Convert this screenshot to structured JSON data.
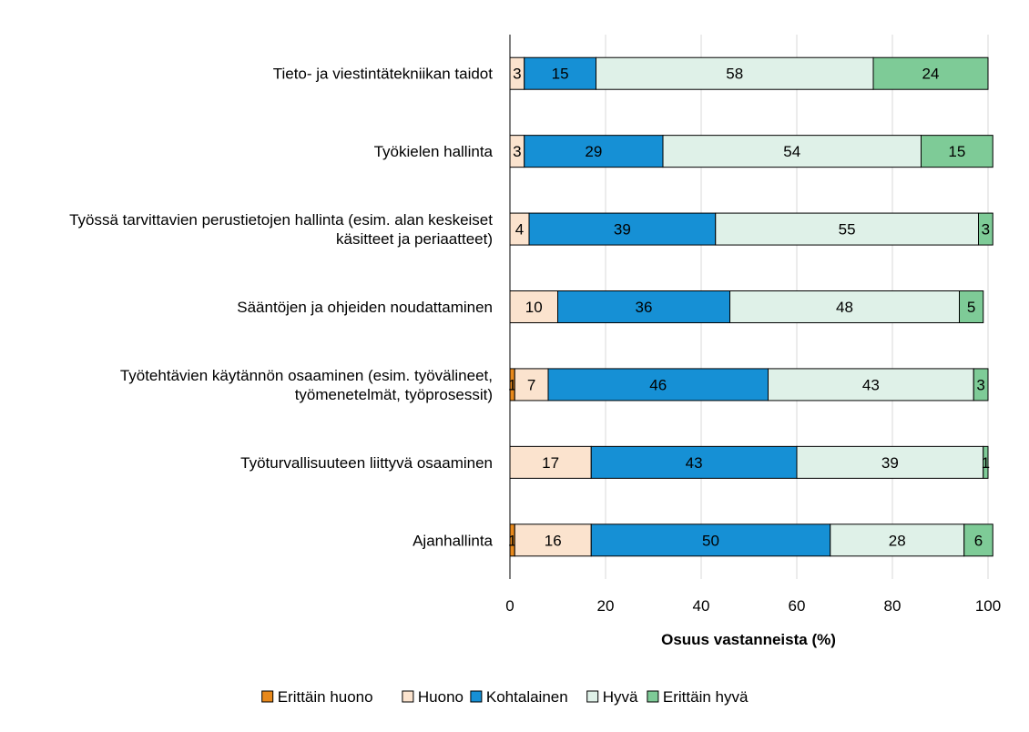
{
  "chart_data": {
    "type": "bar",
    "orientation": "horizontal",
    "stacked": true,
    "categories": [
      [
        "Tieto- ja viestintätekniikan taidot"
      ],
      [
        "Työkielen hallinta"
      ],
      [
        "Työssä tarvittavien perustietojen hallinta (esim. alan keskeiset",
        "käsitteet ja periaatteet)"
      ],
      [
        "Sääntöjen ja ohjeiden noudattaminen"
      ],
      [
        "Työtehtävien käytännön osaaminen (esim. työvälineet,",
        "työmenetelmät, työprosessit)"
      ],
      [
        "Työturvallisuuteen liittyvä osaaminen"
      ],
      [
        "Ajanhallinta"
      ]
    ],
    "series": [
      {
        "name": "Erittäin huono",
        "color": "#E8891C",
        "values": [
          0,
          0,
          0,
          0,
          1,
          0,
          1
        ]
      },
      {
        "name": "Huono",
        "color": "#FBE3CE",
        "values": [
          3,
          3,
          4,
          10,
          7,
          17,
          16
        ]
      },
      {
        "name": "Kohtalainen",
        "color": "#1690D5",
        "values": [
          15,
          29,
          39,
          36,
          46,
          43,
          50
        ]
      },
      {
        "name": "Hyvä",
        "color": "#DFF1E8",
        "values": [
          58,
          54,
          55,
          48,
          43,
          39,
          28
        ]
      },
      {
        "name": "Erittäin hyvä",
        "color": "#7ECB97",
        "values": [
          24,
          15,
          3,
          5,
          3,
          1,
          6
        ]
      }
    ],
    "xlim": [
      0,
      100
    ],
    "xticks": [
      0,
      20,
      40,
      60,
      80,
      100
    ],
    "xlabel": "Osuus vastanneista (%)",
    "grid": true,
    "legend_position": "bottom"
  }
}
